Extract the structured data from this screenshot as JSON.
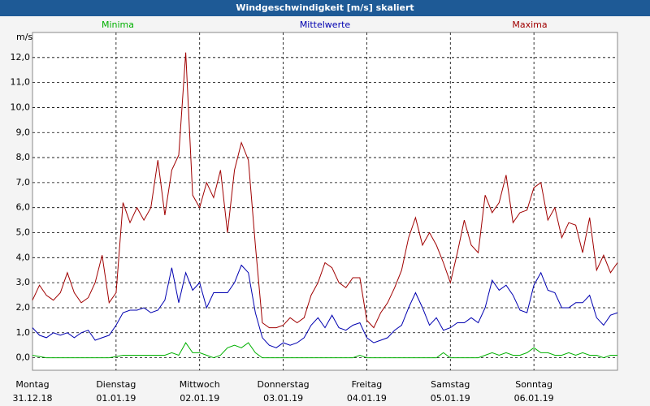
{
  "chart_data": {
    "type": "line",
    "title": "Windgeschwindigkeit [m/s] skaliert",
    "y_unit": "m/s",
    "xlim": [
      0,
      168
    ],
    "ylim": [
      -0.5,
      13
    ],
    "grid": true,
    "xticks": [
      {
        "value": 0,
        "label": "Montag",
        "date": "31.12.18"
      },
      {
        "value": 24,
        "label": "Dienstag",
        "date": "01.01.19"
      },
      {
        "value": 48,
        "label": "Mittwoch",
        "date": "02.01.19"
      },
      {
        "value": 72,
        "label": "Donnerstag",
        "date": "03.01.19"
      },
      {
        "value": 96,
        "label": "Freitag",
        "date": "04.01.19"
      },
      {
        "value": 120,
        "label": "Samstag",
        "date": "05.01.19"
      },
      {
        "value": 144,
        "label": "Sonntag",
        "date": "06.01.19"
      }
    ],
    "yticks": [
      {
        "value": 0,
        "label": "0,0"
      },
      {
        "value": 1,
        "label": "1,0"
      },
      {
        "value": 2,
        "label": "2,0"
      },
      {
        "value": 3,
        "label": "3,0"
      },
      {
        "value": 4,
        "label": "4,0"
      },
      {
        "value": 5,
        "label": "5,0"
      },
      {
        "value": 6,
        "label": "6,0"
      },
      {
        "value": 7,
        "label": "7,0"
      },
      {
        "value": 8,
        "label": "8,0"
      },
      {
        "value": 9,
        "label": "9,0"
      },
      {
        "value": 10,
        "label": "10,0"
      },
      {
        "value": 11,
        "label": "11,0"
      },
      {
        "value": 12,
        "label": "12,0"
      }
    ],
    "x": [
      0,
      2,
      4,
      6,
      8,
      10,
      12,
      14,
      16,
      18,
      20,
      22,
      24,
      26,
      28,
      30,
      32,
      34,
      36,
      38,
      40,
      42,
      44,
      46,
      48,
      50,
      52,
      54,
      56,
      58,
      60,
      62,
      64,
      66,
      68,
      70,
      72,
      74,
      76,
      78,
      80,
      82,
      84,
      86,
      88,
      90,
      92,
      94,
      96,
      98,
      100,
      102,
      104,
      106,
      108,
      110,
      112,
      114,
      116,
      118,
      120,
      122,
      124,
      126,
      128,
      130,
      132,
      134,
      136,
      138,
      140,
      142,
      144,
      146,
      148,
      150,
      152,
      154,
      156,
      158,
      160,
      162,
      164,
      166,
      168
    ],
    "series": [
      {
        "name": "Minima",
        "color": "#00b000",
        "values": [
          0.1,
          0.05,
          0,
          0,
          0,
          0,
          0,
          0,
          0,
          0,
          0,
          0,
          0.05,
          0.1,
          0.1,
          0.1,
          0.1,
          0.1,
          0.1,
          0.1,
          0.2,
          0.1,
          0.6,
          0.2,
          0.2,
          0.1,
          0,
          0.1,
          0.4,
          0.5,
          0.4,
          0.6,
          0.2,
          0,
          0,
          0,
          0,
          0,
          0,
          0,
          0,
          0,
          0,
          0,
          0,
          0,
          0,
          0.1,
          0,
          0,
          0,
          0,
          0,
          0,
          0,
          0,
          0,
          0,
          0,
          0.2,
          0,
          0,
          0,
          0,
          0,
          0.1,
          0.2,
          0.1,
          0.2,
          0.1,
          0.1,
          0.2,
          0.4,
          0.2,
          0.2,
          0.1,
          0.1,
          0.2,
          0.1,
          0.2,
          0.1,
          0.1,
          0,
          0.1,
          0.1
        ]
      },
      {
        "name": "Mittelwerte",
        "color": "#0000b0",
        "values": [
          1.2,
          0.9,
          0.8,
          1.0,
          0.9,
          1.0,
          0.8,
          1.0,
          1.1,
          0.7,
          0.8,
          0.9,
          1.3,
          1.8,
          1.9,
          1.9,
          2.0,
          1.8,
          1.9,
          2.3,
          3.6,
          2.2,
          3.4,
          2.7,
          3.0,
          2.0,
          2.6,
          2.6,
          2.6,
          3.0,
          3.7,
          3.4,
          1.8,
          0.8,
          0.5,
          0.4,
          0.6,
          0.5,
          0.6,
          0.8,
          1.3,
          1.6,
          1.2,
          1.7,
          1.2,
          1.1,
          1.3,
          1.4,
          0.8,
          0.6,
          0.7,
          0.8,
          1.1,
          1.3,
          2.0,
          2.6,
          2.0,
          1.3,
          1.6,
          1.1,
          1.2,
          1.4,
          1.4,
          1.6,
          1.4,
          2.0,
          3.1,
          2.7,
          2.9,
          2.5,
          1.9,
          1.8,
          2.9,
          3.4,
          2.7,
          2.6,
          2.0,
          2.0,
          2.2,
          2.2,
          2.5,
          1.6,
          1.3,
          1.7,
          1.8
        ]
      },
      {
        "name": "Maxima",
        "color": "#a00000",
        "values": [
          2.3,
          2.9,
          2.5,
          2.3,
          2.6,
          3.4,
          2.6,
          2.2,
          2.4,
          3.0,
          4.1,
          2.2,
          2.6,
          6.2,
          5.4,
          6.0,
          5.5,
          6.0,
          7.9,
          5.7,
          7.5,
          8.1,
          12.2,
          6.5,
          6.0,
          7.0,
          6.4,
          7.5,
          5.0,
          7.5,
          8.6,
          7.9,
          4.5,
          1.4,
          1.2,
          1.2,
          1.3,
          1.6,
          1.4,
          1.6,
          2.5,
          3.0,
          3.8,
          3.6,
          3.0,
          2.8,
          3.2,
          3.2,
          1.5,
          1.2,
          1.8,
          2.2,
          2.8,
          3.5,
          4.8,
          5.6,
          4.5,
          5.0,
          4.5,
          3.8,
          3.0,
          4.2,
          5.5,
          4.5,
          4.2,
          6.5,
          5.8,
          6.2,
          7.3,
          5.4,
          5.8,
          5.9,
          6.8,
          7.0,
          5.5,
          6.0,
          4.8,
          5.4,
          5.3,
          4.2,
          5.6,
          3.5,
          4.1,
          3.4,
          3.8
        ]
      }
    ]
  }
}
